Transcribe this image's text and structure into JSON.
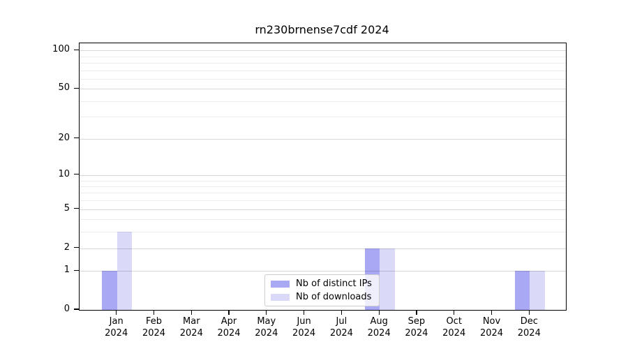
{
  "chart_data": {
    "type": "bar",
    "title": "rn230brnense7cdf 2024",
    "x_tick_months": [
      "Jan",
      "Feb",
      "Mar",
      "Apr",
      "May",
      "Jun",
      "Jul",
      "Aug",
      "Sep",
      "Oct",
      "Nov",
      "Dec"
    ],
    "x_tick_year": "2024",
    "series": [
      {
        "name": "Nb of distinct IPs",
        "color": "#a8a8f4",
        "values": [
          1,
          0,
          0,
          0,
          0,
          0,
          0,
          2,
          0,
          0,
          0,
          1
        ]
      },
      {
        "name": "Nb of downloads",
        "color": "#dadaf8",
        "values": [
          3,
          0,
          0,
          0,
          0,
          0,
          0,
          2,
          0,
          0,
          0,
          1
        ]
      }
    ],
    "y_axis": {
      "scale": "log1p",
      "major_ticks": [
        0,
        1,
        2,
        5,
        10,
        20,
        50,
        100
      ],
      "minor_gridlines": [
        3,
        4,
        6,
        7,
        8,
        9,
        30,
        40,
        60,
        70,
        80,
        90
      ],
      "ylim": [
        0,
        113.5
      ]
    },
    "grid": "horizontal",
    "legend_position": "lower-center-inside",
    "colors": {
      "spine": "#000000",
      "grid_major": "#d8d8d8",
      "grid_minor": "#ededed",
      "legend_border": "#cccccc"
    }
  }
}
